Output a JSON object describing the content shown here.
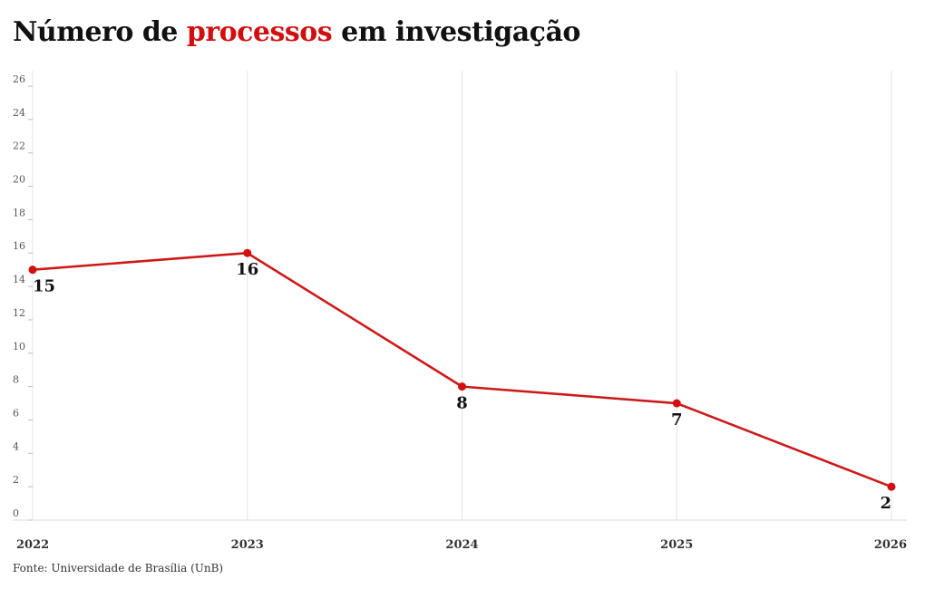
{
  "header": {
    "title_before": "Número de ",
    "title_highlight": "processos",
    "title_after": " em investigação"
  },
  "source": "Fonte: Universidade de Brasília (UnB)",
  "colors": {
    "accent": "#d10f10",
    "line": "#cc1a1a",
    "grid": "#e6e6e6"
  },
  "chart_data": {
    "type": "line",
    "categories": [
      "2022",
      "2023",
      "2024",
      "2025",
      "2026"
    ],
    "values": [
      15,
      16,
      8,
      7,
      2
    ],
    "data_labels": [
      "15",
      "16",
      "8",
      "7",
      "2"
    ],
    "ylim": [
      0,
      26
    ],
    "yticks": [
      0,
      2,
      4,
      6,
      8,
      10,
      12,
      14,
      16,
      18,
      20,
      22,
      24,
      26
    ],
    "grid": "vertical",
    "legend": "none",
    "title": "Número de processos em investigação",
    "xlabel": "",
    "ylabel": ""
  }
}
